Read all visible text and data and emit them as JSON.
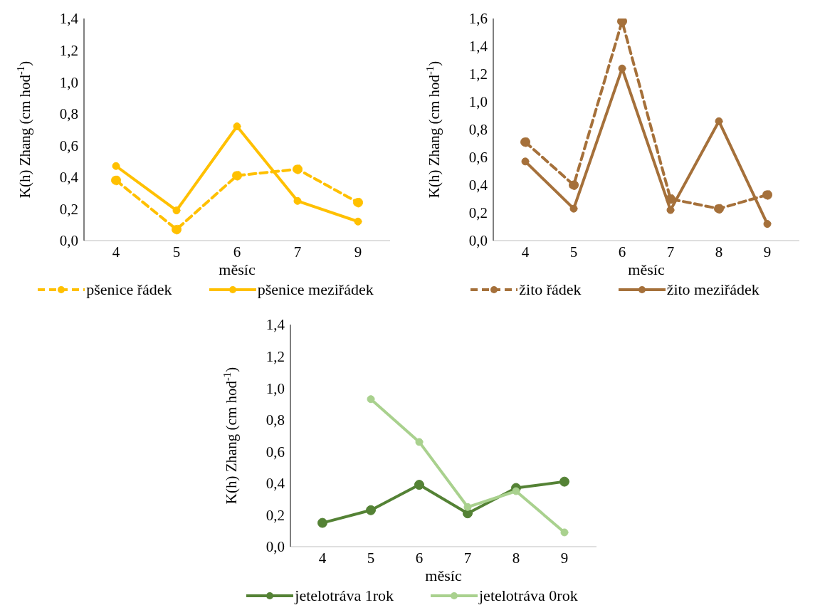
{
  "chart_data": [
    {
      "type": "line",
      "categories": [
        "4",
        "5",
        "6",
        "7",
        "9"
      ],
      "xlabel": "měsíc",
      "ylabel": "K(h) Zhang (cm hod$^{-1}$)",
      "ylim": [
        0,
        1.4
      ],
      "yticks": [
        {
          "value": 0,
          "label": "0,0"
        },
        {
          "value": 0.2,
          "label": "0,2"
        },
        {
          "value": 0.4,
          "label": "0,4"
        },
        {
          "value": 0.6,
          "label": "0,6"
        },
        {
          "value": 0.8,
          "label": "0,8"
        },
        {
          "value": 1.0,
          "label": "1,0"
        },
        {
          "value": 1.2,
          "label": "1,2"
        },
        {
          "value": 1.4,
          "label": "1,4"
        }
      ],
      "grid": false,
      "legend": "bottom",
      "marker": "circle",
      "series": [
        {
          "name": "pšenice řádek",
          "color": "#ffc000",
          "line_style": "dashed",
          "values": [
            0.38,
            0.07,
            0.41,
            0.45,
            0.24
          ]
        },
        {
          "name": "pšenice meziřádek",
          "color": "#ffc000",
          "line_style": "solid",
          "values": [
            0.47,
            0.19,
            0.72,
            0.25,
            0.12
          ]
        }
      ]
    },
    {
      "type": "line",
      "categories": [
        "4",
        "5",
        "6",
        "7",
        "8",
        "9"
      ],
      "xlabel": "měsíc",
      "ylabel": "K(h) Zhang (cm hod$^{-1}$)",
      "ylim": [
        0,
        1.6
      ],
      "yticks": [
        {
          "value": 0,
          "label": "0,0"
        },
        {
          "value": 0.2,
          "label": "0,2"
        },
        {
          "value": 0.4,
          "label": "0,4"
        },
        {
          "value": 0.6,
          "label": "0,6"
        },
        {
          "value": 0.8,
          "label": "0,8"
        },
        {
          "value": 1.0,
          "label": "1,0"
        },
        {
          "value": 1.2,
          "label": "1,2"
        },
        {
          "value": 1.4,
          "label": "1,4"
        },
        {
          "value": 1.6,
          "label": "1,6"
        }
      ],
      "grid": false,
      "legend": "bottom",
      "marker": "circle",
      "series": [
        {
          "name": "žito řádek",
          "color": "#a5703a",
          "line_style": "dashed",
          "values": [
            0.71,
            0.4,
            1.58,
            0.3,
            0.23,
            0.33
          ]
        },
        {
          "name": "žito meziřádek",
          "color": "#a5703a",
          "line_style": "solid",
          "values": [
            0.57,
            0.23,
            1.24,
            0.22,
            0.86,
            0.12
          ]
        }
      ]
    },
    {
      "type": "line",
      "categories": [
        "4",
        "5",
        "6",
        "7",
        "8",
        "9"
      ],
      "xlabel": "měsíc",
      "ylabel": "K(h) Zhang (cm hod$^{-1}$)",
      "ylim": [
        0,
        1.4
      ],
      "yticks": [
        {
          "value": 0,
          "label": "0,0"
        },
        {
          "value": 0.2,
          "label": "0,2"
        },
        {
          "value": 0.4,
          "label": "0,4"
        },
        {
          "value": 0.6,
          "label": "0,6"
        },
        {
          "value": 0.8,
          "label": "0,8"
        },
        {
          "value": 1.0,
          "label": "1,0"
        },
        {
          "value": 1.2,
          "label": "1,2"
        },
        {
          "value": 1.4,
          "label": "1,4"
        }
      ],
      "grid": false,
      "legend": "bottom",
      "marker": "circle",
      "series": [
        {
          "name": "jetelotráva 1rok",
          "color": "#548235",
          "line_style": "solid",
          "values": [
            0.15,
            0.23,
            0.39,
            0.21,
            0.37,
            0.41
          ]
        },
        {
          "name": "jetelotráva 0rok",
          "color": "#a9d18e",
          "line_style": "solid",
          "values": [
            null,
            0.93,
            0.66,
            0.25,
            0.35,
            0.09
          ]
        }
      ]
    }
  ]
}
